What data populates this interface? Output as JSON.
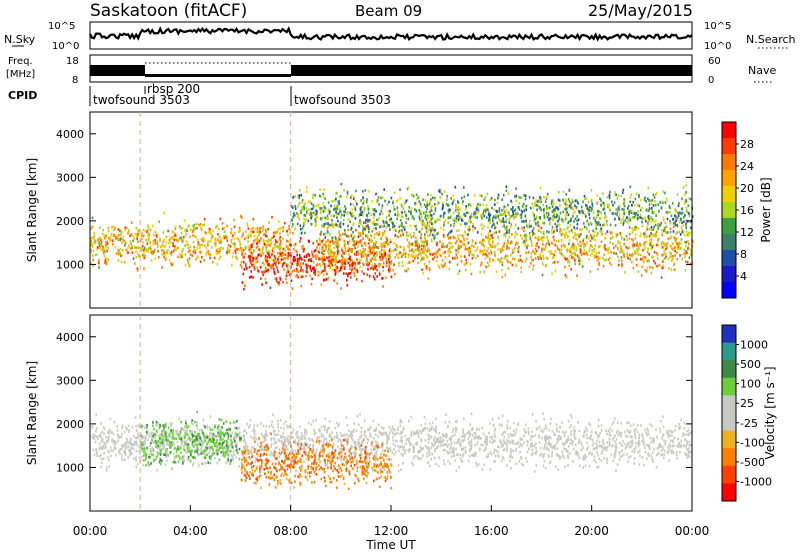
{
  "header": {
    "station": "Saskatoon (fitACF)",
    "beam": "Beam 09",
    "date": "25/May/2015"
  },
  "top_panels": {
    "nsky_label": "N.Sky",
    "nsky_ticks": [
      "10^5",
      "10^0"
    ],
    "nsearch_label": "N.Search",
    "nsearch_ticks": [
      "10^5",
      "10^0"
    ],
    "freq_label_1": "Freq.",
    "freq_label_2": "[MHz]",
    "freq_ticks": [
      "18",
      "8"
    ],
    "nave_label": "Nave",
    "nave_ticks": [
      "60",
      "0"
    ],
    "cpid_label": "CPID",
    "cpid_segments": [
      {
        "label": "twofsound 3503",
        "start_hour": 0
      },
      {
        "label": "rbsp 200",
        "start_hour": 2
      },
      {
        "label": "twofsound 3503",
        "start_hour": 8
      }
    ]
  },
  "power_panel": {
    "ylabel": "Slant Range [km]",
    "colorbar_label": "Power [dB]",
    "colorbar_ticks": [
      "28",
      "24",
      "20",
      "16",
      "12",
      "8",
      "4"
    ],
    "colorbar_colors": [
      "#ff0000",
      "#ff3a00",
      "#ff7a00",
      "#ffa300",
      "#f0d000",
      "#a8d820",
      "#3aa040",
      "#3c7f6a",
      "#1f4ea8",
      "#1a1ac8",
      "#0000ff"
    ]
  },
  "velocity_panel": {
    "ylabel": "Slant Range [km]",
    "colorbar_label": "Velocity [m s⁻¹]",
    "colorbar_ticks": [
      "1000",
      "500",
      "100",
      "25",
      "-25",
      "-100",
      "-500",
      "-1000"
    ],
    "colorbar_colors": [
      "#2030c0",
      "#2a9a8a",
      "#3c8a48",
      "#6ad038",
      "#c8c8c4",
      "#c8c8c4",
      "#f0b020",
      "#ff8000",
      "#ff4000",
      "#ff0000"
    ],
    "ground_scatter_color": "#c8c8c4"
  },
  "xaxis": {
    "label": "Time UT",
    "ticks": [
      "00:00",
      "04:00",
      "08:00",
      "12:00",
      "16:00",
      "20:00",
      "00:00"
    ]
  },
  "chart_data": [
    {
      "type": "heatmap",
      "title": "Power [dB]",
      "xlabel": "Time UT",
      "ylabel": "Slant Range [km]",
      "xlim_hours": [
        0,
        24
      ],
      "ylim_km": [
        0,
        4500
      ],
      "yticks": [
        1000,
        2000,
        3000,
        4000
      ],
      "colorbar_range_db": [
        0,
        30
      ],
      "approx_bands": [
        {
          "from_hour": 0,
          "to_hour": 8,
          "center_km": 1500,
          "power_db": 20
        },
        {
          "from_hour": 6,
          "to_hour": 12,
          "center_km": 1100,
          "power_db": 28
        },
        {
          "from_hour": 9,
          "to_hour": 24,
          "center_km": 1400,
          "power_db": 20
        },
        {
          "from_hour": 8,
          "to_hour": 24,
          "center_km": 2200,
          "power_db": 12
        }
      ]
    },
    {
      "type": "heatmap",
      "title": "Velocity [m s⁻¹]",
      "xlabel": "Time UT",
      "ylabel": "Slant Range [km]",
      "xlim_hours": [
        0,
        24
      ],
      "ylim_km": [
        0,
        4500
      ],
      "yticks": [
        1000,
        2000,
        3000,
        4000
      ],
      "colorbar_range_ms": [
        -1000,
        1000
      ],
      "approx_bands": [
        {
          "from_hour": 0,
          "to_hour": 24,
          "center_km": 1600,
          "velocity_ms": 0,
          "ground_scatter": true
        },
        {
          "from_hour": 2,
          "to_hour": 6,
          "center_km": 1600,
          "velocity_ms": 100
        },
        {
          "from_hour": 6,
          "to_hour": 12,
          "center_km": 1100,
          "velocity_ms": -300
        }
      ]
    }
  ]
}
